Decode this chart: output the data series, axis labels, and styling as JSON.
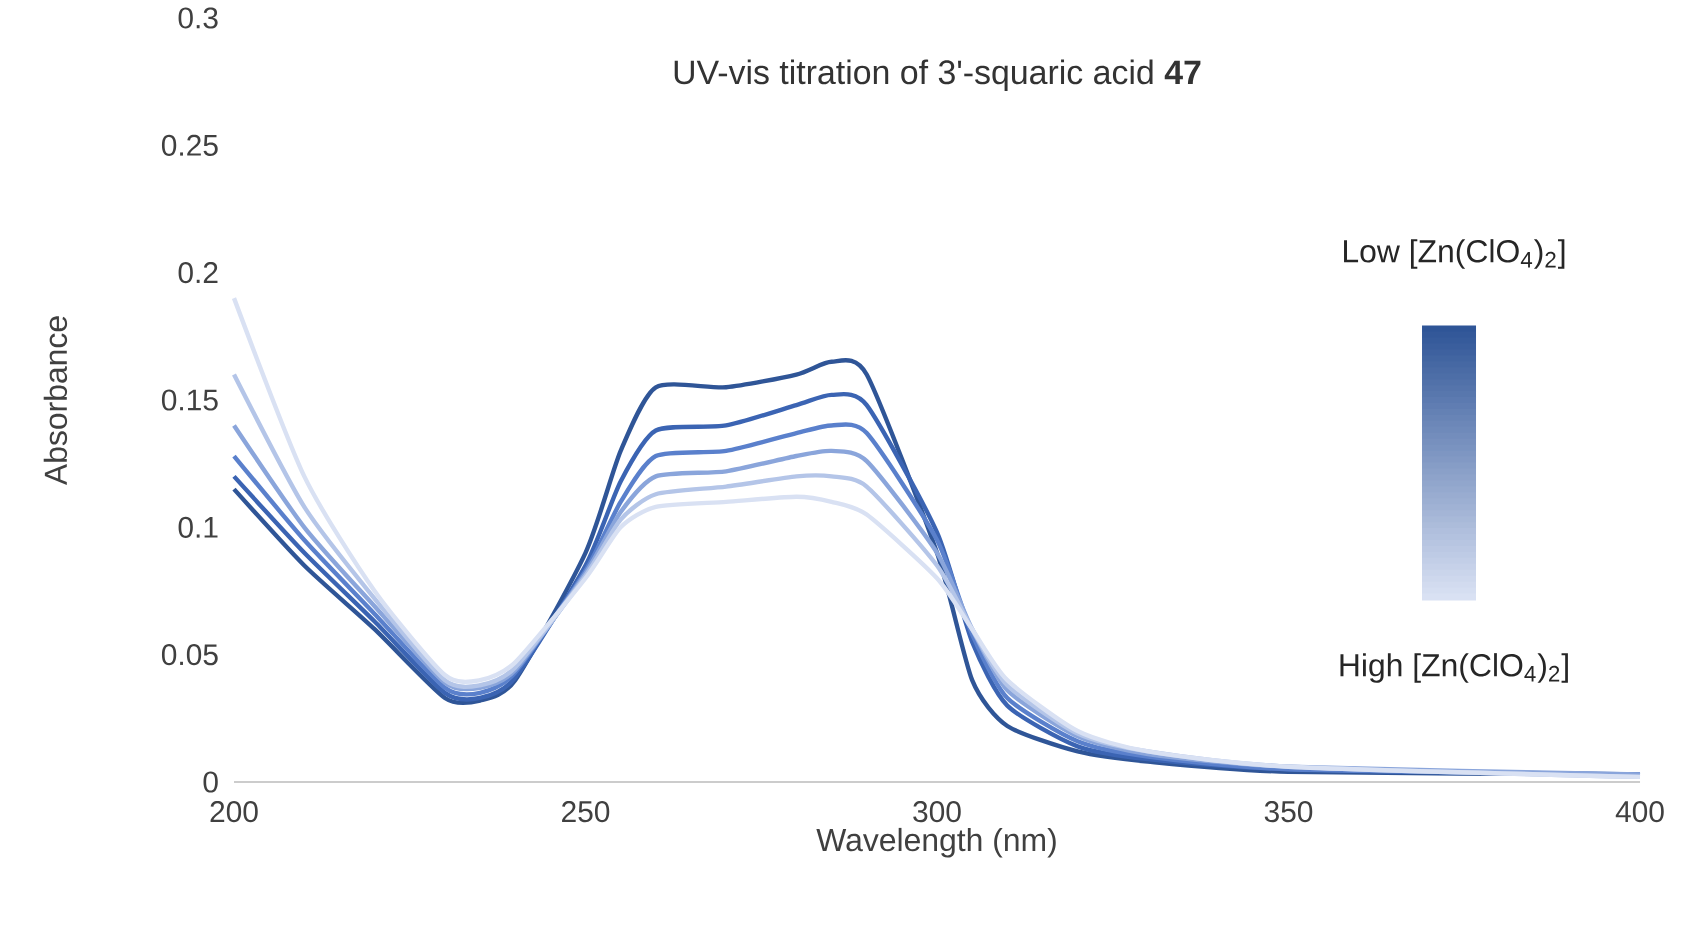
{
  "chart_data": {
    "type": "line",
    "title": "UV-vis titration of 3'-squaric acid **47**",
    "xlabel": "Wavelength (nm)",
    "ylabel": "Absorbance",
    "x": [
      200,
      210,
      220,
      230,
      235,
      240,
      250,
      255,
      260,
      270,
      280,
      285,
      290,
      300,
      305,
      310,
      320,
      330,
      350,
      400
    ],
    "series": [
      {
        "color": "#2f5597",
        "values": [
          0.115,
          0.085,
          0.06,
          0.033,
          0.032,
          0.04,
          0.09,
          0.13,
          0.155,
          0.155,
          0.16,
          0.165,
          0.16,
          0.09,
          0.04,
          0.022,
          0.012,
          0.008,
          0.004,
          0.003
        ]
      },
      {
        "color": "#3b64b3",
        "values": [
          0.12,
          0.09,
          0.063,
          0.035,
          0.033,
          0.041,
          0.085,
          0.118,
          0.138,
          0.14,
          0.148,
          0.152,
          0.148,
          0.098,
          0.055,
          0.03,
          0.014,
          0.009,
          0.005,
          0.003
        ]
      },
      {
        "color": "#5a80cc",
        "values": [
          0.128,
          0.095,
          0.066,
          0.037,
          0.035,
          0.043,
          0.083,
          0.11,
          0.128,
          0.13,
          0.137,
          0.14,
          0.137,
          0.095,
          0.058,
          0.033,
          0.016,
          0.01,
          0.005,
          0.003
        ]
      },
      {
        "color": "#8aa5db",
        "values": [
          0.14,
          0.1,
          0.069,
          0.039,
          0.037,
          0.044,
          0.082,
          0.106,
          0.12,
          0.122,
          0.128,
          0.13,
          0.126,
          0.09,
          0.06,
          0.036,
          0.018,
          0.011,
          0.006,
          0.003
        ]
      },
      {
        "color": "#b4c5e8",
        "values": [
          0.16,
          0.108,
          0.072,
          0.04,
          0.038,
          0.045,
          0.081,
          0.103,
          0.113,
          0.116,
          0.12,
          0.12,
          0.116,
          0.085,
          0.06,
          0.038,
          0.019,
          0.012,
          0.006,
          0.002
        ]
      },
      {
        "color": "#d9e1f3",
        "values": [
          0.19,
          0.12,
          0.075,
          0.042,
          0.04,
          0.047,
          0.08,
          0.1,
          0.108,
          0.11,
          0.112,
          0.11,
          0.105,
          0.08,
          0.06,
          0.04,
          0.02,
          0.012,
          0.006,
          0.002
        ]
      }
    ],
    "xlim": [
      200,
      400
    ],
    "ylim": [
      0,
      0.3
    ],
    "xticks": [
      200,
      250,
      300,
      350,
      400
    ],
    "yticks": [
      0,
      0.05,
      0.1,
      0.15,
      0.2,
      0.25,
      0.3
    ],
    "grid": false,
    "marker": "none",
    "line_style": "solid",
    "annotations": [
      "Low [Zn(ClO$_{4}$)$_{2}$]",
      "High [Zn(ClO$_{4}$)$_{2}$]"
    ]
  }
}
